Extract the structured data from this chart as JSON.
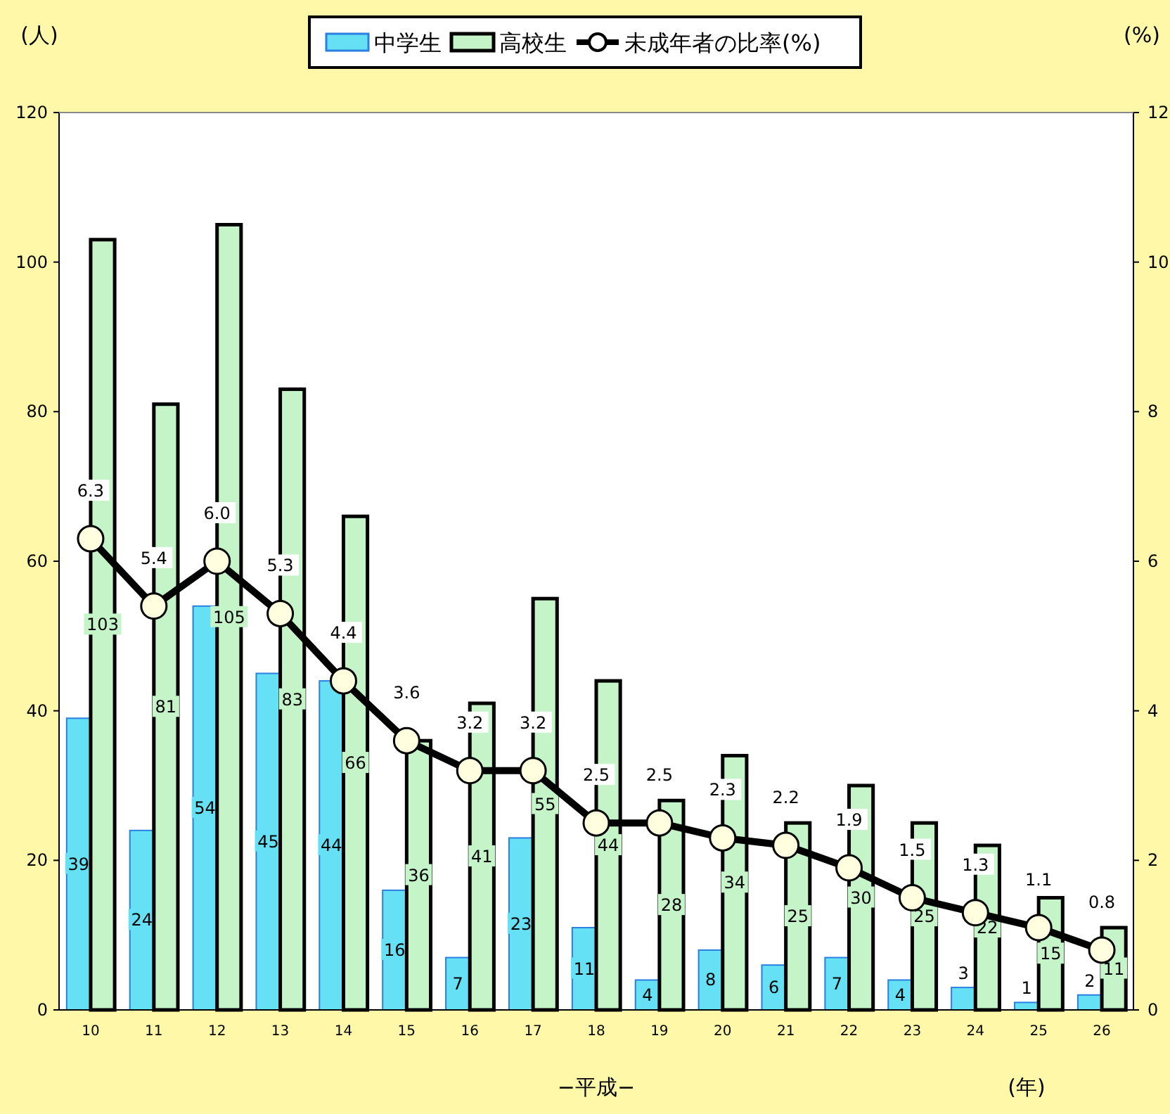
{
  "chart_data": {
    "type": "bar",
    "ylabel": "(人)",
    "y2label": "(%)",
    "xlabel": "−平成−",
    "annotations": [
      "(年)"
    ],
    "categories": [
      "10",
      "11",
      "12",
      "13",
      "14",
      "15",
      "16",
      "17",
      "18",
      "19",
      "20",
      "21",
      "22",
      "23",
      "24",
      "25",
      "26"
    ],
    "series": [
      {
        "name": "中学生",
        "color": "#66e0f4",
        "values": [
          39,
          24,
          54,
          45,
          44,
          16,
          7,
          23,
          11,
          4,
          8,
          6,
          7,
          4,
          3,
          1,
          2
        ],
        "value_labels": [
          "39",
          "24",
          "54",
          "45",
          "44",
          "16",
          "7",
          "23",
          "11",
          "4",
          "8",
          "6",
          "7",
          "4",
          "3",
          "1",
          "2"
        ]
      },
      {
        "name": "高校生",
        "color": "#c4f4c8",
        "values": [
          103,
          81,
          105,
          83,
          66,
          36,
          41,
          55,
          44,
          28,
          34,
          25,
          30,
          25,
          22,
          15,
          11
        ],
        "value_labels": [
          "103",
          "81",
          "105",
          "83",
          "66",
          "36",
          "41",
          "55",
          "44",
          "28",
          "34",
          "25",
          "30",
          "25",
          "22",
          "15",
          "11"
        ]
      },
      {
        "name": "未成年者の比率(%)",
        "type": "line",
        "axis": "y2",
        "color": "#000000",
        "marker": "circle",
        "values": [
          6.3,
          5.4,
          6.0,
          5.3,
          4.4,
          3.6,
          3.2,
          3.2,
          2.5,
          2.5,
          2.3,
          2.2,
          1.9,
          1.5,
          1.3,
          1.1,
          0.8
        ],
        "value_labels": [
          "6.3",
          "5.4",
          "6.0",
          "5.3",
          "4.4",
          "3.6",
          "3.2",
          "3.2",
          "2.5",
          "2.5",
          "2.3",
          "2.2",
          "1.9",
          "1.5",
          "1.3",
          "1.1",
          "0.8"
        ]
      }
    ],
    "ylim": [
      0,
      120
    ],
    "yticks": [
      0,
      20,
      40,
      60,
      80,
      100,
      120
    ],
    "y2lim": [
      0,
      12
    ],
    "y2ticks": [
      0,
      2,
      4,
      6,
      8,
      10,
      12
    ],
    "grid": false,
    "legend": "top"
  }
}
